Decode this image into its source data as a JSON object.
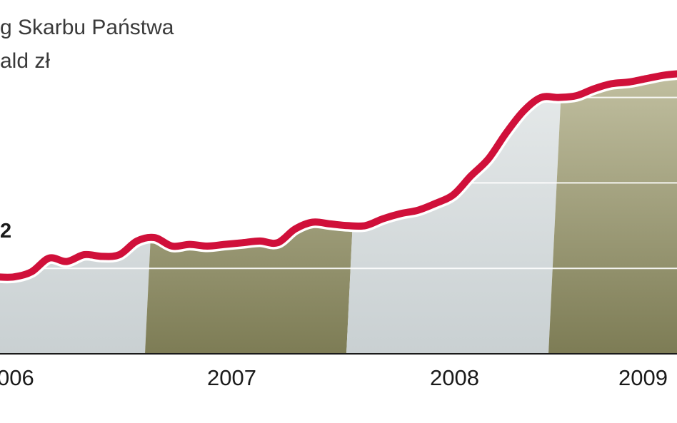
{
  "chart_data": {
    "type": "area",
    "title": "g Skarbu Państwa",
    "subtitle": "ald zł",
    "start_label": "2",
    "x_ticks": [
      "006",
      "2007",
      "2008",
      "2009"
    ],
    "x": [
      "2006-01",
      "2006-02",
      "2006-03",
      "2006-04",
      "2006-05",
      "2006-06",
      "2006-07",
      "2006-08",
      "2006-09",
      "2006-10",
      "2006-11",
      "2006-12",
      "2007-01",
      "2007-02",
      "2007-03",
      "2007-04",
      "2007-05",
      "2007-06",
      "2007-07",
      "2007-08",
      "2007-09",
      "2007-10",
      "2007-11",
      "2007-12",
      "2008-01",
      "2008-02",
      "2008-03",
      "2008-04",
      "2008-05",
      "2008-06",
      "2008-07",
      "2008-08",
      "2008-09",
      "2008-10",
      "2008-11",
      "2008-12",
      "2009-01",
      "2009-02",
      "2009-03",
      "2009-04"
    ],
    "values": [
      2,
      2,
      2.3,
      3.1,
      2.9,
      3.3,
      3.2,
      3.3,
      4.1,
      4.3,
      3.8,
      3.9,
      3.8,
      3.9,
      4,
      4.1,
      4,
      4.8,
      5.2,
      5.1,
      5,
      5,
      5.4,
      5.7,
      5.9,
      6.3,
      6.8,
      7.9,
      8.9,
      10.4,
      11.7,
      12.5,
      12.5,
      12.6,
      13,
      13.3,
      13.4,
      13.6,
      13.8,
      13.9
    ],
    "ylim": [
      -2.5,
      18.2
    ],
    "gridlines": [
      2.5,
      7.5,
      12.5
    ],
    "colors": {
      "line": "#d0103a",
      "line_halo": "#ffffff",
      "band_light": "#dde3e4",
      "band_dark": "#a3a17c",
      "gridline": "#ffffff",
      "axis": "#1a1a1a"
    }
  }
}
